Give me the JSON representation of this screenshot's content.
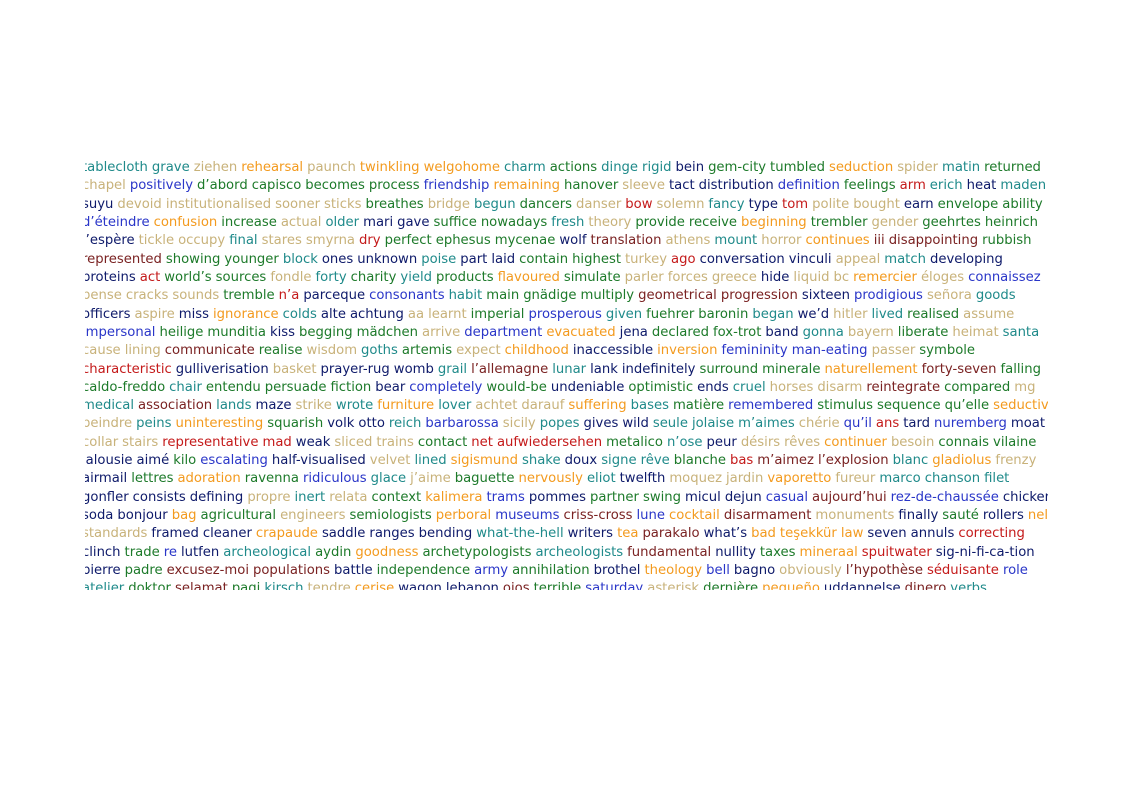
{
  "palette": {
    "a": "#1f8a8a",
    "b": "#c8b27a",
    "c": "#f39a1e",
    "d": "#1d7a2a",
    "e": "#2a36c8",
    "f": "#0e1a6a",
    "g": "#c41a1a",
    "h": "#7a2222",
    "k": "#1c2c1c"
  },
  "lines": [
    "tablecloth|a grave|a ziehen|b rehearsal|c paunch|b twinkling|c welgohome|c charm|a actions|d dinge|a rigid|a bein|f gem-city|d tumbled|d seduction|c spider|b matin|a returned|d",
    "chapel|b positively|e d’abord|d capisco|d becomes|d process|d friendship|e remaining|c hanover|d sleeve|b tact|f distribution|f definition|e feelings|d arm|g erich|a heat|f maden|a",
    "suyu|f devoid|b institutionalised|b sooner|b sticks|b breathes|d bridge|b begun|a dancers|d danser|b bow|g solemn|b fancy|a type|f tom|g polite|b bought|b earn|f envelope|d ability|d",
    "d’éteindre|e confusion|c increase|d actual|b older|a mari|f gave|f suffice|d nowadays|d fresh|a theory|b provide|d receive|d beginning|c trembler|d gender|b geehrtes|d heinrich|d",
    "l’espère|f tickle|b occupy|b final|a stares|b smyrna|b dry|g perfect|d ephesus|d mycenae|d wolf|f translation|h athens|b mount|a horror|b continues|c iii|h disappointing|h rubbish|d",
    "represented|h showing|d younger|d block|a ones|f unknown|f poise|a part|f laid|f contain|d highest|d turkey|b ago|g conversation|f vinculi|f appeal|b match|a developing|f",
    "proteins|f act|g world’s|d sources|d fondle|b forty|a charity|d yield|a products|d flavoured|c simulate|d parler|b forces|b greece|b hide|f liquid|b bc|b remercier|c éloges|b connaissez|e",
    "pense|b cracks|b sounds|b tremble|d n’a|g parceque|f consonants|e habit|a main|d gnädige|d multiply|d geometrical|h progression|h sixteen|f prodigious|e señora|b goods|a",
    "officers|f aspire|b miss|f ignorance|c colds|a alte|f achtung|f aa|b learnt|b imperial|d prosperous|e given|a fuehrer|d baronin|d began|a we’d|f hitler|b lived|a realised|d assume|b",
    "impersonal|e heilige|d munditia|d kiss|f begging|d mädchen|d arrive|b department|e evacuated|c jena|f declared|d fox-trot|d band|f gonna|a bayern|b liberate|d heimat|b santa|a",
    "cause|b lining|b communicate|h realise|d wisdom|b goths|a artemis|d expect|b childhood|c inaccessible|f inversion|c femininity|e man-eating|e passer|b symbole|d",
    "characteristic|g gulliverisation|f basket|b prayer-rug|f womb|f grail|a l’allemagne|h lunar|a lank|f indefinitely|f surround|d minerale|d naturellement|c forty-seven|h falling|d",
    "caldo-freddo|d chair|a entendu|d persuade|d fiction|d bear|f completely|e would-be|d undeniable|f optimistic|d ends|f cruel|a horses|b disarm|b reintegrate|h compared|d mg|b",
    "medical|a association|h lands|a maze|f strike|b wrote|a furniture|c lover|a achtet|b darauf|b suffering|c bases|a matière|d remembered|e stimulus|d sequence|d qu’elle|d seductive|c",
    "peindre|b peins|a uninteresting|c squarish|d volk|f otto|f reich|a barbarossa|e sicily|b popes|a gives|f wild|f seule|a jolaise|a m’aimes|a chérie|b qu’il|e ans|g tard|f nuremberg|e moat|f",
    "collar|b stairs|b representative|g mad|g weak|f sliced|b trains|b contact|d net|g aufwiedersehen|g metalico|d n’ose|a peur|f désirs|b rêves|b continuer|c besoin|b connais|d vilaine|d",
    "jalousie|f aimé|f kilo|d escalating|e half-visualised|f velvet|b lined|a sigismund|c shake|a doux|f signe|a rêve|a blanche|d bas|g m’aimez|h l’explosion|h blanc|a gladiolus|c frenzy|b",
    "airmail|f lettres|d adoration|c ravenna|d ridiculous|e glace|a j’aime|b baguette|d nervously|c eliot|a twelfth|f moquez|b jardin|b vaporetto|c fureur|b marco|a chanson|a filet|a",
    "gonfler|f consists|f defining|f propre|b inert|a relata|b context|d kalimera|c trams|e pommes|f partner|d swing|d micul|f dejun|f casual|e aujourd’hui|h rez-de-chaussée|e chicken|f",
    "soda|f bonjour|f bag|c agricultural|d engineers|b semiologists|d perboral|c museums|e criss-cross|h lune|e cocktail|c disarmament|h monuments|b finally|f sauté|d rollers|f nel|c",
    "standards|b framed|f cleaner|f crapaude|c saddle|f ranges|f bending|f what-the-hell|a writers|f tea|c parakalo|h what’s|f bad|c teşekkür|c law|c seven|f annuls|f correcting|g",
    "clinch|f trade|d re|e lutfen|f archeological|a aydin|d goodness|c archetypologists|d archeologists|a fundamental|h nullity|f taxes|d mineraal|c spuitwater|g sig-ni-fi-ca-tion|f",
    "pierre|f padre|d excusez-moi|h populations|h battle|f independence|d army|e annihilation|d brothel|f theology|c bell|e bagno|f obviously|b l’hypothèse|h séduisante|g role|e",
    "atelier|a doktor|d selamat|h pagi|d kirsch|a tendre|b cerise|c wagon|f lebanon|f ojos|h terrible|d saturday|e asterisk|b dernière|d pequeño|c uddannelse|f dinero|h verbs|a"
  ]
}
